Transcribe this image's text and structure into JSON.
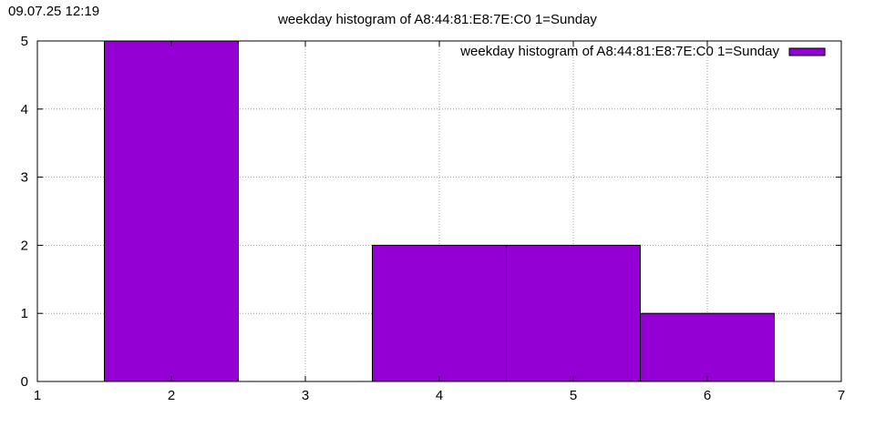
{
  "timestamp": "09.07.25 12:19",
  "chart_data": {
    "type": "bar",
    "title": "weekday histogram of A8:44:81:E8:7E:C0 1=Sunday",
    "xlabel": "",
    "ylabel": "",
    "xlim": [
      1,
      7
    ],
    "ylim": [
      0,
      5
    ],
    "x_ticks": [
      "1",
      "2",
      "3",
      "4",
      "5",
      "6",
      "7"
    ],
    "y_ticks": [
      "0",
      "1",
      "2",
      "3",
      "4",
      "5"
    ],
    "grid": true,
    "legend": "top-right",
    "bar_width": 1,
    "series": [
      {
        "name": "weekday histogram of A8:44:81:E8:7E:C0 1=Sunday",
        "color": "#9400d3",
        "x": [
          2,
          4,
          5,
          6
        ],
        "values": [
          5,
          2,
          2,
          1
        ]
      }
    ]
  }
}
